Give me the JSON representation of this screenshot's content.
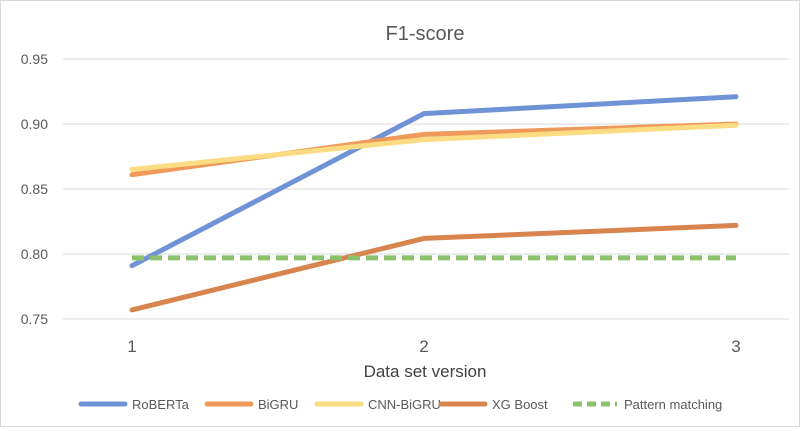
{
  "chart_data": {
    "type": "line",
    "title": "F1-score",
    "xlabel": "Data set version",
    "ylabel": "",
    "categories": [
      "1",
      "2",
      "3"
    ],
    "ylim": [
      0.75,
      0.95
    ],
    "yticks": [
      "0.75",
      "0.80",
      "0.85",
      "0.90",
      "0.95"
    ],
    "grid": true,
    "legend_position": "bottom",
    "series": [
      {
        "name": "RoBERTa",
        "values": [
          0.791,
          0.908,
          0.921
        ],
        "color": "#6f93d6",
        "dashed": false
      },
      {
        "name": "BiGRU",
        "values": [
          0.861,
          0.892,
          0.9
        ],
        "color": "#ef9a5b",
        "dashed": false
      },
      {
        "name": "CNN-BiGRU",
        "values": [
          0.865,
          0.888,
          0.899
        ],
        "color": "#fbdc82",
        "dashed": false
      },
      {
        "name": "XG Boost",
        "values": [
          0.757,
          0.812,
          0.822
        ],
        "color": "#d7844f",
        "dashed": false
      },
      {
        "name": "Pattern matching",
        "values": [
          0.797,
          0.797,
          0.797
        ],
        "color": "#8cc16c",
        "dashed": true
      }
    ]
  }
}
